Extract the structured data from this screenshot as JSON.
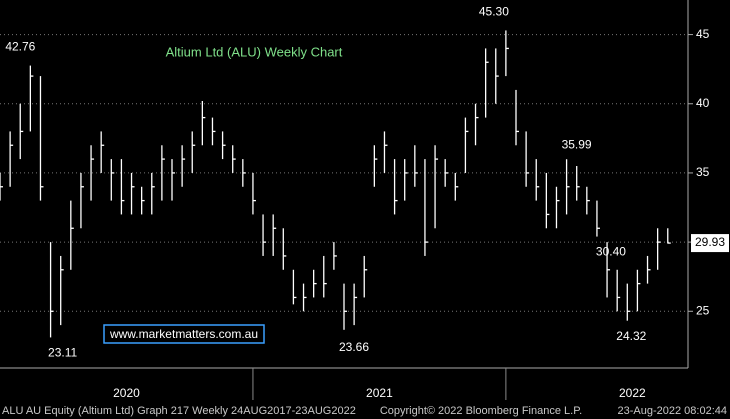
{
  "chart_data": {
    "type": "hlc",
    "title": "Altium Ltd (ALU) Weekly Chart",
    "watermark": "www.marketmatters.com.au",
    "footer": {
      "left": "ALU AU Equity (Altium Ltd) Graph 217  Weekly 24AUG2017-23AUG2022",
      "middle": "Copyright© 2022 Bloomberg Finance L.P.",
      "right": "23-Aug-2022 08:02:44"
    },
    "color": "#ffffff",
    "x": [
      2020.0,
      2020.04,
      2020.08,
      2020.12,
      2020.16,
      2020.2,
      2020.24,
      2020.28,
      2020.32,
      2020.36,
      2020.4,
      2020.44,
      2020.48,
      2020.52,
      2020.56,
      2020.6,
      2020.64,
      2020.68,
      2020.72,
      2020.76,
      2020.8,
      2020.84,
      2020.88,
      2020.92,
      2020.96,
      2021.0,
      2021.04,
      2021.08,
      2021.12,
      2021.16,
      2021.2,
      2021.24,
      2021.28,
      2021.32,
      2021.36,
      2021.4,
      2021.44,
      2021.48,
      2021.52,
      2021.56,
      2021.6,
      2021.64,
      2021.68,
      2021.72,
      2021.76,
      2021.8,
      2021.84,
      2021.88,
      2021.92,
      2021.96,
      2022.0,
      2022.04,
      2022.08,
      2022.12,
      2022.16,
      2022.2,
      2022.24,
      2022.28,
      2022.32,
      2022.36,
      2022.4,
      2022.44,
      2022.48,
      2022.52,
      2022.56,
      2022.6,
      2022.64
    ],
    "high": [
      35,
      38,
      40,
      42.76,
      42,
      30,
      29,
      33,
      35,
      37,
      38,
      36,
      36,
      35,
      34,
      35,
      37,
      36,
      37,
      38,
      40.2,
      39,
      38,
      37,
      36,
      35,
      32,
      32,
      31,
      28,
      27,
      28,
      29,
      30,
      27,
      27,
      29,
      37,
      38,
      36,
      36,
      37,
      36,
      37,
      36,
      35,
      39,
      40,
      44,
      44,
      45.3,
      41,
      38,
      36,
      35,
      34,
      35.99,
      35.5,
      34,
      33,
      30,
      28,
      27,
      28,
      29,
      31,
      31
    ],
    "low": [
      33,
      34,
      36,
      38,
      33,
      23.11,
      24,
      28,
      31,
      33,
      35,
      33,
      32,
      32,
      32,
      32,
      33,
      33,
      34,
      35,
      37,
      37,
      36,
      35,
      34,
      32,
      29,
      29,
      28,
      25.5,
      25,
      26,
      26,
      28,
      23.66,
      24,
      26,
      34,
      35,
      32,
      33,
      34,
      29,
      31,
      34,
      33,
      35,
      37,
      39,
      40,
      42,
      37,
      34,
      33,
      31,
      31,
      32,
      33,
      32,
      30.4,
      26,
      25,
      24.32,
      25,
      27,
      28,
      29.9
    ],
    "close": [
      34,
      37,
      38,
      42,
      34,
      25,
      28,
      31,
      34,
      36,
      37,
      35,
      33,
      34,
      33,
      34,
      36,
      35,
      36,
      37,
      39,
      38,
      37,
      36,
      35,
      33,
      30,
      31,
      29,
      26,
      26,
      27,
      27,
      29,
      25,
      26,
      28,
      36,
      37,
      33,
      35,
      35,
      30,
      36,
      35,
      34,
      38,
      39,
      43,
      42,
      44,
      38,
      35,
      34,
      32,
      33,
      34,
      34,
      33,
      31,
      28,
      26,
      25,
      27,
      28,
      30,
      29.93
    ],
    "last": {
      "value": 29.93,
      "label": "29.93"
    },
    "annotations": [
      {
        "x": 2020.12,
        "value": 42.76,
        "label": "42.76"
      },
      {
        "x": 2020.2,
        "value": 23.11,
        "label": "23.11"
      },
      {
        "x": 2022.0,
        "value": 45.3,
        "label": "45.30"
      },
      {
        "x": 2021.36,
        "value": 23.66,
        "label": "23.66"
      },
      {
        "x": 2022.24,
        "value": 35.99,
        "label": "35.99"
      },
      {
        "x": 2022.36,
        "value": 30.4,
        "label": "30.40"
      },
      {
        "x": 2022.48,
        "value": 24.32,
        "label": "24.32"
      }
    ],
    "xlim": [
      2020.0,
      2022.72
    ],
    "xticks": [
      {
        "value": 2020.5,
        "label": "2020"
      },
      {
        "value": 2021.5,
        "label": "2021"
      },
      {
        "value": 2022.5,
        "label": "2022"
      }
    ],
    "ylim": [
      20.9,
      47.5
    ],
    "yticks": [
      25,
      30,
      35,
      40,
      45
    ],
    "grid": true
  }
}
